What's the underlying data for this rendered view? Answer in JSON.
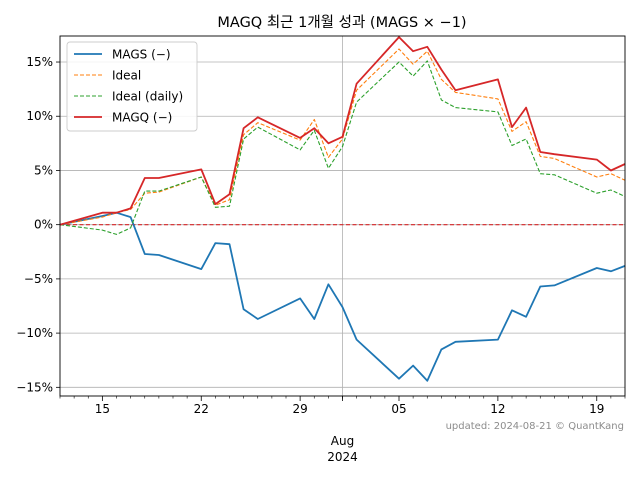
{
  "chart_data": {
    "type": "line",
    "title": "MAGQ 최근 1개월 성과 (MAGS × −1)",
    "x_dates": [
      "2024-07-12",
      "2024-07-15",
      "2024-07-16",
      "2024-07-17",
      "2024-07-18",
      "2024-07-19",
      "2024-07-22",
      "2024-07-23",
      "2024-07-24",
      "2024-07-25",
      "2024-07-26",
      "2024-07-29",
      "2024-07-30",
      "2024-07-31",
      "2024-08-01",
      "2024-08-02",
      "2024-08-05",
      "2024-08-06",
      "2024-08-07",
      "2024-08-08",
      "2024-08-09",
      "2024-08-12",
      "2024-08-13",
      "2024-08-14",
      "2024-08-15",
      "2024-08-16",
      "2024-08-19",
      "2024-08-20",
      "2024-08-21"
    ],
    "x_ticks": [
      {
        "date": "2024-07-15",
        "label": "15"
      },
      {
        "date": "2024-07-22",
        "label": "22"
      },
      {
        "date": "2024-07-29",
        "label": "29"
      },
      {
        "date": "2024-08-05",
        "label": "05"
      },
      {
        "date": "2024-08-12",
        "label": "12"
      },
      {
        "date": "2024-08-19",
        "label": "19"
      }
    ],
    "x_minor_tick_dates": [
      "2024-07-12",
      "2024-07-13",
      "2024-07-14",
      "2024-07-16",
      "2024-07-17",
      "2024-07-18",
      "2024-07-19",
      "2024-07-20",
      "2024-07-21",
      "2024-07-23",
      "2024-07-24",
      "2024-07-25",
      "2024-07-26",
      "2024-07-27",
      "2024-07-28",
      "2024-07-30",
      "2024-07-31",
      "2024-08-01",
      "2024-08-02",
      "2024-08-03",
      "2024-08-04",
      "2024-08-06",
      "2024-08-07",
      "2024-08-08",
      "2024-08-09",
      "2024-08-10",
      "2024-08-11",
      "2024-08-13",
      "2024-08-14",
      "2024-08-15",
      "2024-08-16",
      "2024-08-17",
      "2024-08-18",
      "2024-08-20",
      "2024-08-21"
    ],
    "month_marker": {
      "date": "2024-08-01",
      "label_month": "Aug",
      "label_year": "2024"
    },
    "y_ticks": [
      {
        "value": 0.15,
        "label": "15%"
      },
      {
        "value": 0.1,
        "label": "10%"
      },
      {
        "value": 0.05,
        "label": "5%"
      },
      {
        "value": 0.0,
        "label": "0%"
      },
      {
        "value": -0.05,
        "label": "−5%"
      },
      {
        "value": -0.1,
        "label": "−10%"
      },
      {
        "value": -0.15,
        "label": "−15%"
      }
    ],
    "ylim": [
      -0.158,
      0.174
    ],
    "xlim": [
      "2024-07-12",
      "2024-08-21"
    ],
    "grid": true,
    "legend_position": "top-left",
    "zero_line_color": "#d62728",
    "annotation": "updated: 2024-08-21 © QuantKang",
    "series": [
      {
        "name": "MAGS (−)",
        "color": "#1f77b4",
        "style": "solid",
        "values": [
          0.0,
          0.008,
          0.011,
          0.007,
          -0.027,
          -0.028,
          -0.041,
          -0.017,
          -0.018,
          -0.078,
          -0.087,
          -0.068,
          -0.087,
          -0.055,
          -0.076,
          -0.106,
          -0.142,
          -0.13,
          -0.144,
          -0.115,
          -0.108,
          -0.106,
          -0.079,
          -0.085,
          -0.057,
          -0.056,
          -0.04,
          -0.043,
          -0.038
        ]
      },
      {
        "name": "Ideal",
        "color": "#ff7f0e",
        "style": "dashed",
        "values": [
          0.0,
          0.007,
          0.011,
          0.014,
          0.029,
          0.03,
          0.044,
          0.018,
          0.023,
          0.083,
          0.094,
          0.078,
          0.097,
          0.062,
          0.079,
          0.124,
          0.162,
          0.148,
          0.16,
          0.134,
          0.122,
          0.116,
          0.086,
          0.095,
          0.063,
          0.061,
          0.044,
          0.047,
          0.041
        ]
      },
      {
        "name": "Ideal (daily)",
        "color": "#2ca02c",
        "style": "dashed",
        "values": [
          0.0,
          -0.005,
          -0.009,
          -0.003,
          0.031,
          0.031,
          0.044,
          0.016,
          0.017,
          0.079,
          0.09,
          0.069,
          0.087,
          0.052,
          0.072,
          0.113,
          0.15,
          0.137,
          0.151,
          0.115,
          0.108,
          0.104,
          0.073,
          0.079,
          0.047,
          0.046,
          0.029,
          0.032,
          0.026
        ]
      },
      {
        "name": "MAGQ (−)",
        "color": "#d62728",
        "style": "solid",
        "values": [
          0.0,
          0.011,
          0.011,
          0.015,
          0.043,
          0.043,
          0.051,
          0.019,
          0.028,
          0.089,
          0.099,
          0.08,
          0.089,
          0.075,
          0.081,
          0.13,
          0.173,
          0.16,
          0.164,
          0.143,
          0.124,
          0.134,
          0.09,
          0.108,
          0.067,
          0.065,
          0.06,
          0.05,
          0.056
        ]
      }
    ]
  }
}
